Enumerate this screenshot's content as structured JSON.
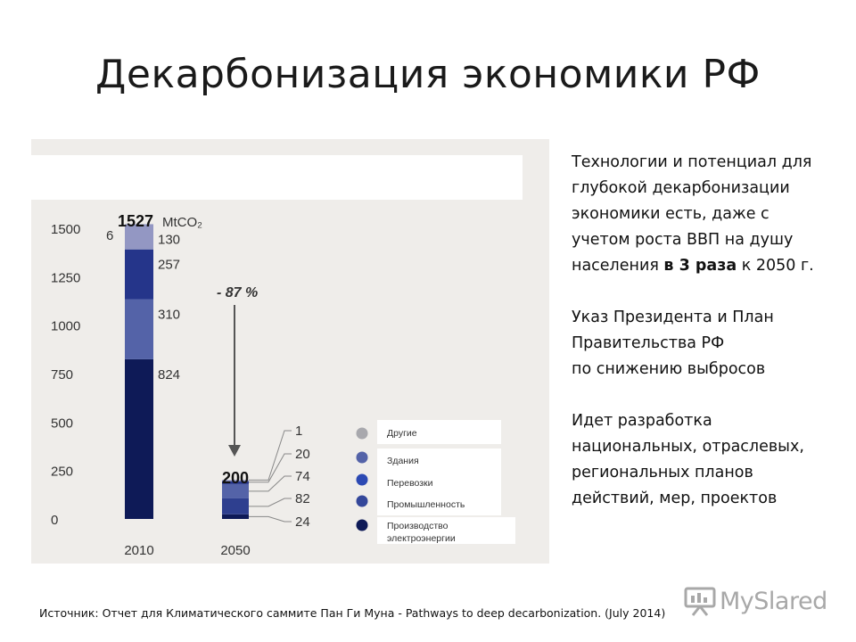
{
  "slide": {
    "title": "Декарбонизация экономики РФ"
  },
  "right_text": {
    "p1_lines": [
      "Технологии и потенциал для",
      "глубокой декарбонизации",
      "экономики есть, даже с",
      "учетом роста ВВП на душу"
    ],
    "p1_last_prefix": "населения ",
    "p1_last_bold": "в 3 раза",
    "p1_last_suffix": " к 2050 г.",
    "p2_lines": [
      "Указ Президента и План",
      "Правительства РФ",
      "по снижению выбросов"
    ],
    "p3_lines": [
      "Идет разработка",
      "национальных, отраслевых,",
      "региональных планов",
      "действий, мер, проектов"
    ]
  },
  "source": "Источник: Отчет для Климатического саммите Пан Ги Муна - Pathways to deep decarbonization. (July 2014)",
  "logo": {
    "text": "MySlared",
    "icon": "presentation-board-icon"
  },
  "chart_data": {
    "type": "bar",
    "stacked": true,
    "categories": [
      "2010",
      "2050"
    ],
    "y_ticks": [
      "1500",
      "1250",
      "1000",
      "750",
      "500",
      "250",
      "0"
    ],
    "ylim": [
      0,
      1500
    ],
    "unit": "MtCO₂",
    "totals": [
      "1527",
      "200"
    ],
    "reduction_label": "- 87 %",
    "misc_label": "6",
    "series": [
      {
        "name": "Производство электроэнергии",
        "color": "#0e1a57",
        "values": [
          824,
          24
        ],
        "value_labels": [
          "824",
          "24"
        ]
      },
      {
        "name": "Промышленность",
        "color": "#2e3f8f",
        "values": [
          0,
          82
        ],
        "value_labels": [
          "",
          "82"
        ]
      },
      {
        "name": "Перевозки",
        "color": "#5463a8",
        "values": [
          310,
          74
        ],
        "value_labels": [
          "310",
          "74"
        ]
      },
      {
        "name": "Здания",
        "color": "#25358a",
        "values": [
          257,
          20
        ],
        "value_labels": [
          "257",
          "20"
        ]
      },
      {
        "name": "Другие",
        "color": "#9397c3",
        "values": [
          130,
          1
        ],
        "value_labels": [
          "130",
          "1"
        ]
      }
    ],
    "legend": [
      {
        "name": "Другие",
        "color": "#a8a8ad"
      },
      {
        "name": "Здания",
        "color": "#5463a8"
      },
      {
        "name": "Перевозки",
        "color": "#2c49b3"
      },
      {
        "name": "Промышленность",
        "color": "#34479a"
      },
      {
        "name": "Производство электроэнергии",
        "color": "#0e1a57"
      }
    ],
    "legend_lines": [
      "Производство",
      "электроэнергии"
    ],
    "legend_placement": "bottom-right"
  }
}
